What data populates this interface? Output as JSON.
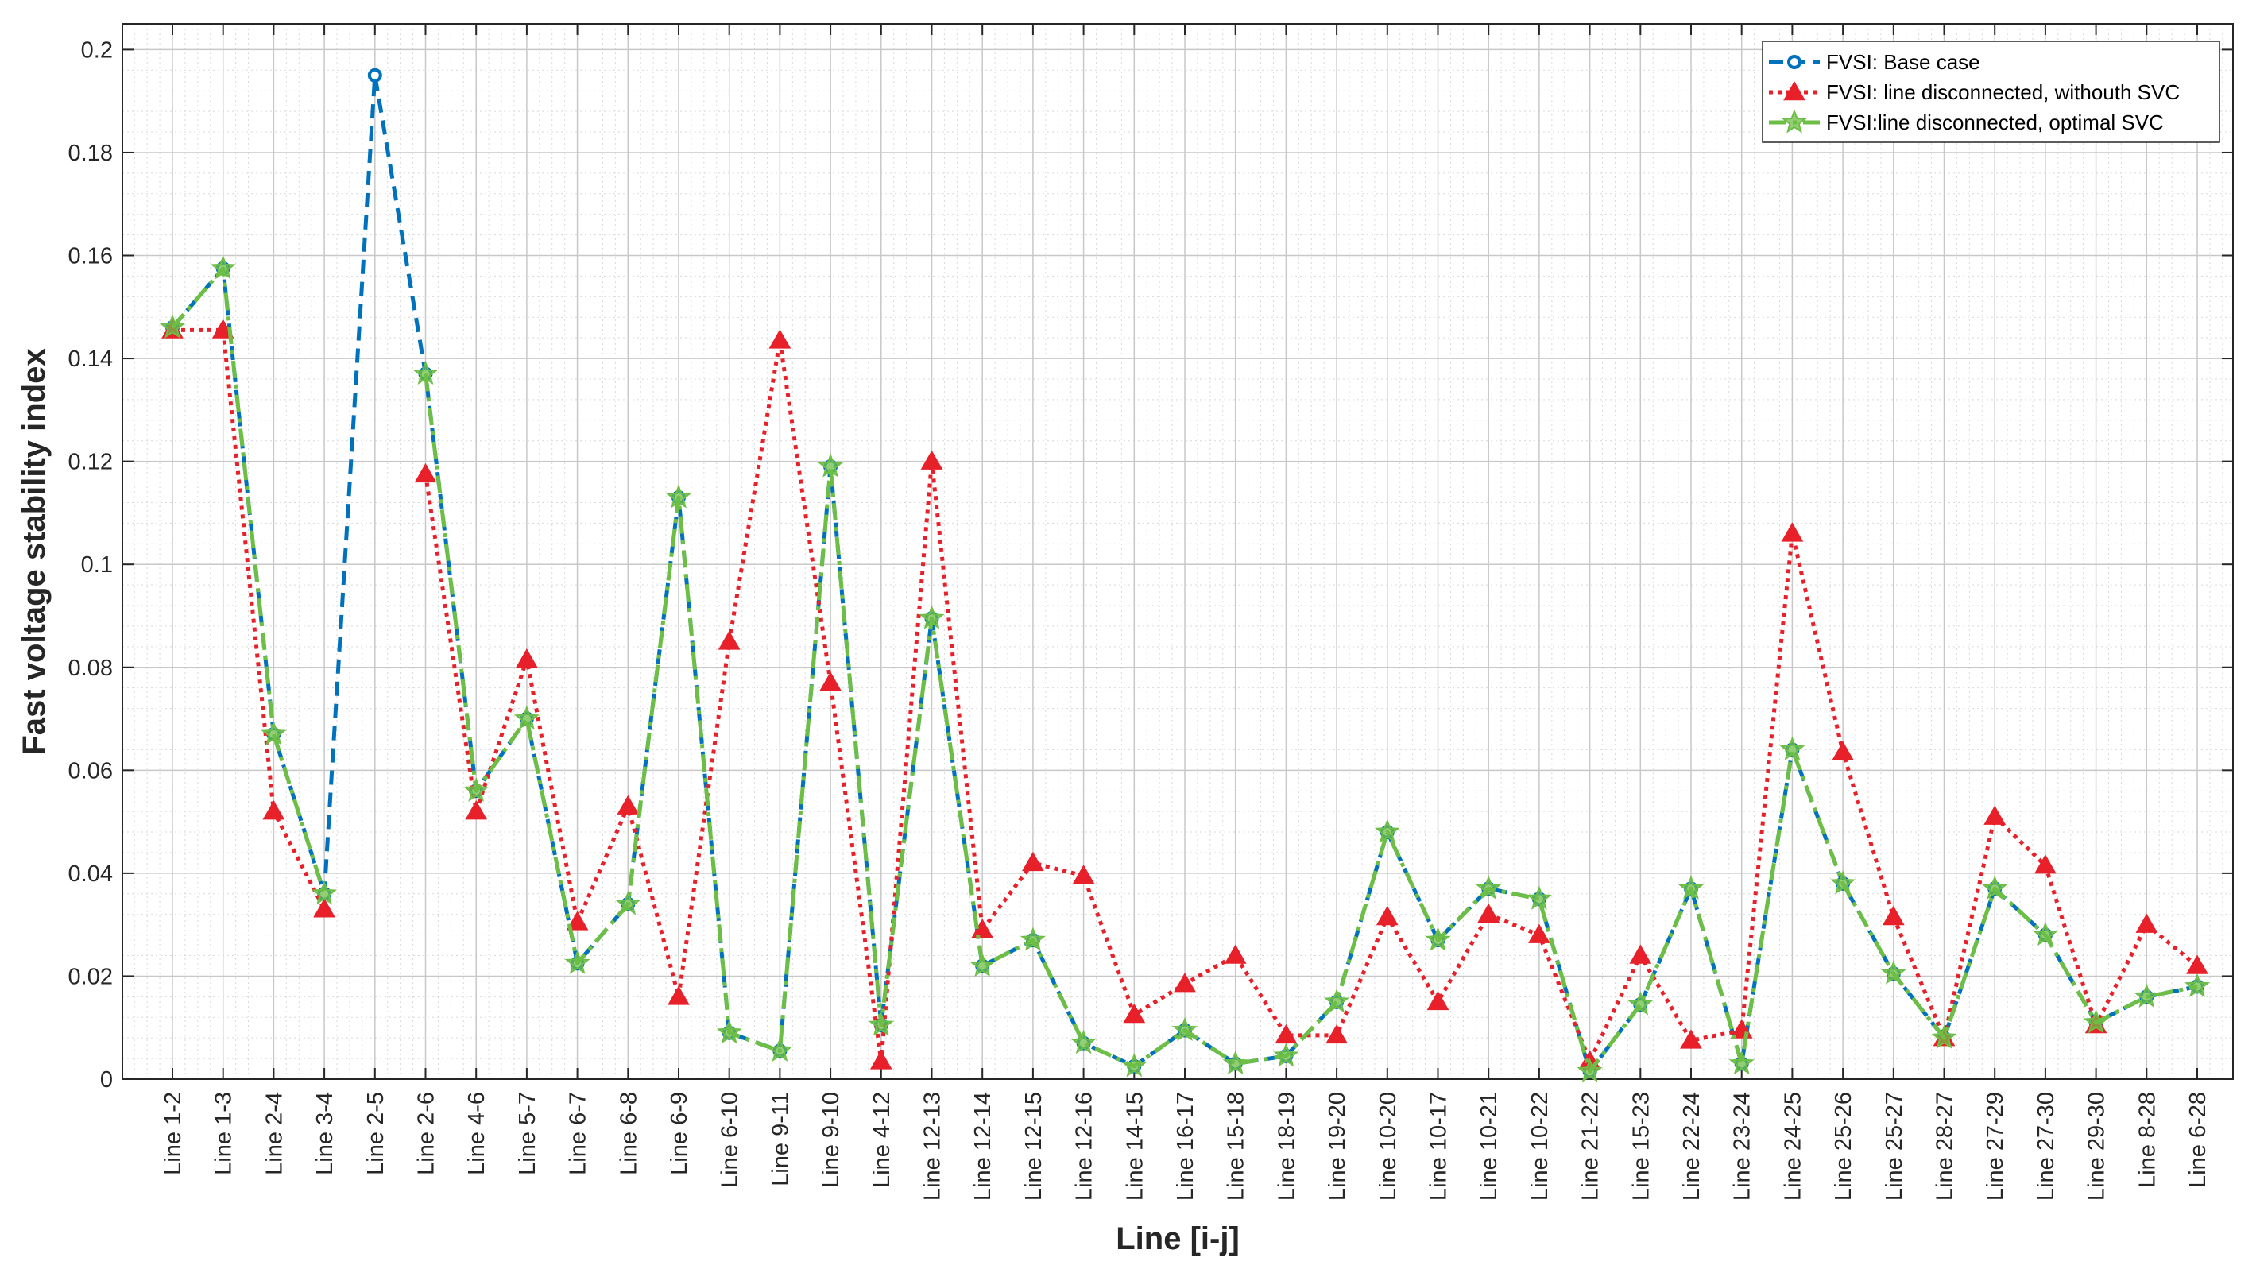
{
  "chart_data": {
    "type": "line",
    "title": "",
    "xlabel": "Line [i-j]",
    "ylabel": "Fast voltage stability index",
    "ylim": [
      0,
      0.205
    ],
    "yticks": [
      "0",
      "0.02",
      "0.04",
      "0.06",
      "0.08",
      "0.1",
      "0.12",
      "0.14",
      "0.16",
      "0.18",
      "0.2"
    ],
    "ytick_values": [
      0,
      0.02,
      0.04,
      0.06,
      0.08,
      0.1,
      0.12,
      0.14,
      0.16,
      0.18,
      0.2
    ],
    "grid": true,
    "minor_grid": true,
    "legend_position": "top-right",
    "categories": [
      "Line 1-2",
      "Line 1-3",
      "Line 2-4",
      "Line 3-4",
      "Line 2-5",
      "Line 2-6",
      "Line 4-6",
      "Line 5-7",
      "Line 6-7",
      "Line 6-8",
      "Line 6-9",
      "Line 6-10",
      "Line 9-11",
      "Line 9-10",
      "Line 4-12",
      "Line 12-13",
      "Line 12-14",
      "Line 12-15",
      "Line 12-16",
      "Line 14-15",
      "Line 16-17",
      "Line 15-18",
      "Line 18-19",
      "Line 19-20",
      "Line 10-20",
      "Line 10-17",
      "Line 10-21",
      "Line 10-22",
      "Line 21-22",
      "Line 15-23",
      "Line 22-24",
      "Line 23-24",
      "Line 24-25",
      "Line 25-26",
      "Line 25-27",
      "Line 28-27",
      "Line 27-29",
      "Line 27-30",
      "Line 29-30",
      "Line 8-28",
      "Line 6-28"
    ],
    "series": [
      {
        "name": "FVSI: Base case",
        "color": "#0072BD",
        "marker": "circle",
        "dash": "dashed",
        "values": [
          0.146,
          0.1575,
          0.067,
          0.036,
          0.195,
          0.137,
          0.056,
          0.07,
          0.0225,
          0.034,
          0.113,
          0.009,
          0.0055,
          0.119,
          0.0105,
          0.0895,
          0.022,
          0.027,
          0.007,
          0.0025,
          0.0095,
          0.003,
          0.0045,
          0.015,
          0.048,
          0.027,
          0.037,
          0.035,
          0.0015,
          0.0145,
          0.037,
          0.003,
          0.064,
          0.038,
          0.0205,
          0.008,
          0.037,
          0.028,
          0.011,
          0.016,
          0.018
        ]
      },
      {
        "name": "FVSI: line disconnected, withouth SVC",
        "color": "#E8202A",
        "marker": "triangle",
        "dash": "dotted",
        "values": [
          0.1455,
          0.1455,
          0.052,
          0.033,
          null,
          0.1175,
          0.052,
          0.0815,
          0.0305,
          0.053,
          0.016,
          0.085,
          0.1435,
          0.077,
          0.0035,
          0.12,
          0.029,
          0.042,
          0.0395,
          0.0125,
          0.0185,
          0.024,
          0.0085,
          0.0085,
          0.0315,
          0.015,
          0.032,
          0.028,
          0.0035,
          0.024,
          0.0075,
          0.0095,
          0.106,
          0.0635,
          0.0315,
          0.008,
          0.051,
          0.0415,
          0.0105,
          0.03,
          0.022
        ]
      },
      {
        "name": "FVSI:line disconnected, optimal SVC",
        "color": "#6DBE45",
        "marker": "star",
        "dash": "dashdot",
        "values": [
          0.146,
          0.1575,
          0.067,
          0.036,
          null,
          0.137,
          0.056,
          0.07,
          0.0225,
          0.034,
          0.113,
          0.009,
          0.0055,
          0.119,
          0.0105,
          0.0895,
          0.022,
          0.027,
          0.007,
          0.0025,
          0.0095,
          0.003,
          0.0045,
          0.015,
          0.048,
          0.027,
          0.037,
          0.035,
          0.0015,
          0.0145,
          0.037,
          0.003,
          0.064,
          0.038,
          0.0205,
          0.008,
          0.037,
          0.028,
          0.011,
          0.016,
          0.018
        ]
      }
    ]
  }
}
